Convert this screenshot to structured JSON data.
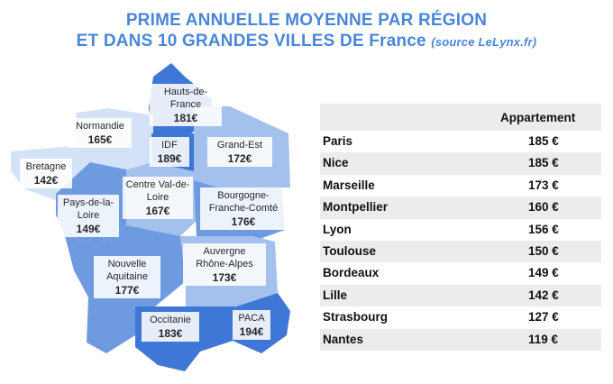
{
  "title": {
    "line1": "PRIME ANNUELLE MOYENNE PAR RÉGION",
    "line2": "ET DANS 10 GRANDES VILLES DE France",
    "source": "(source LeLynx.fr)"
  },
  "colors": {
    "title": "#4a86d8",
    "region_dark": "#3f77d6",
    "region_mid": "#6e9be0",
    "region_light": "#a4c1ee",
    "region_pale": "#d4e2f7",
    "table_stripe": "#ececec"
  },
  "map": {
    "regions": [
      {
        "name": "Hauts-de-France",
        "value": "181€"
      },
      {
        "name": "Normandie",
        "value": "165€"
      },
      {
        "name": "IDF",
        "value": "189€"
      },
      {
        "name": "Grand-Est",
        "value": "172€"
      },
      {
        "name": "Bretagne",
        "value": "142€"
      },
      {
        "name": "Centre Val-de-Loire",
        "value": "167€"
      },
      {
        "name": "Pays-de-la-Loire",
        "value": "149€"
      },
      {
        "name": "Bourgogne-Franche-Comté",
        "value": "176€"
      },
      {
        "name": "Auvergne Rhône-Alpes",
        "value": "173€"
      },
      {
        "name": "Nouvelle Aquitaine",
        "value": "177€"
      },
      {
        "name": "Occitanie",
        "value": "183€"
      },
      {
        "name": "PACA",
        "value": "194€"
      }
    ]
  },
  "table": {
    "header": "Appartement",
    "rows": [
      {
        "city": "Paris",
        "price": "185 €"
      },
      {
        "city": "Nice",
        "price": "185 €"
      },
      {
        "city": "Marseille",
        "price": "173 €"
      },
      {
        "city": "Montpellier",
        "price": "160 €"
      },
      {
        "city": "Lyon",
        "price": "156 €"
      },
      {
        "city": "Toulouse",
        "price": "150 €"
      },
      {
        "city": "Bordeaux",
        "price": "149 €"
      },
      {
        "city": "Lille",
        "price": "142 €"
      },
      {
        "city": "Strasbourg",
        "price": "127 €"
      },
      {
        "city": "Nantes",
        "price": "119 €"
      }
    ]
  }
}
